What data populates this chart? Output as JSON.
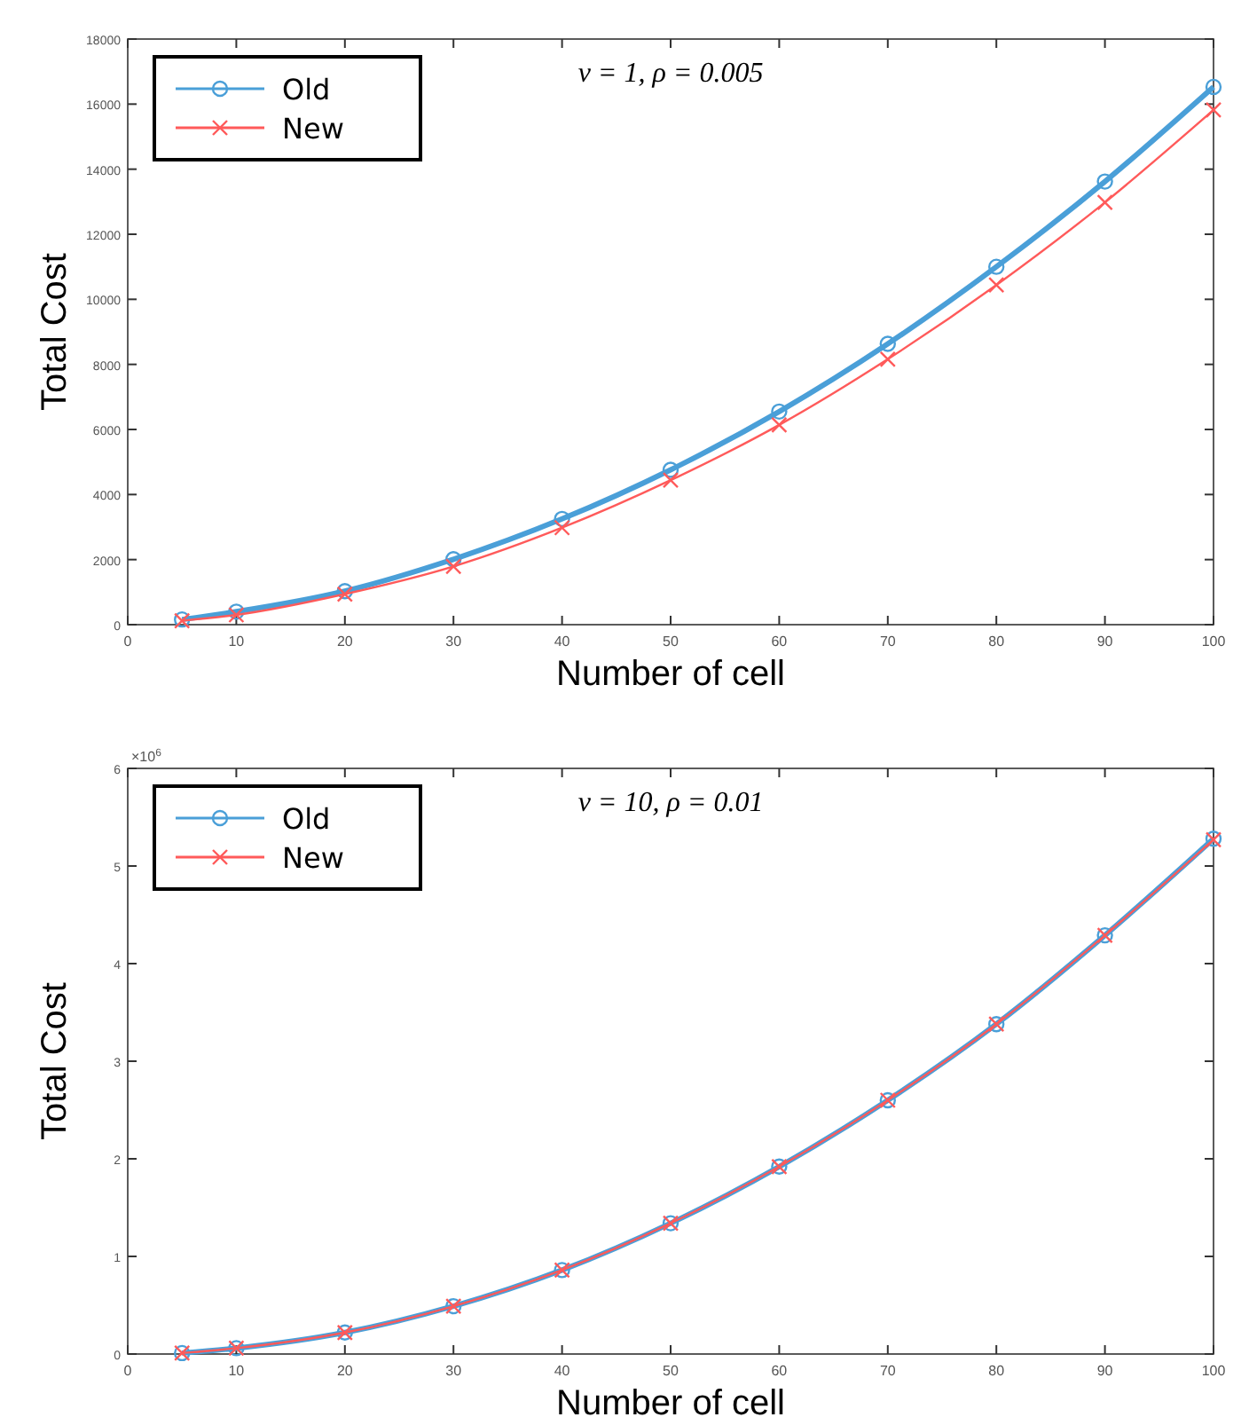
{
  "chart_data": [
    {
      "type": "line",
      "title": "ν = 1, ρ = 0.005",
      "xlabel": "Number of cell",
      "ylabel": "Total Cost",
      "xlim": [
        0,
        100
      ],
      "xticks": [
        0,
        10,
        20,
        30,
        40,
        50,
        60,
        70,
        80,
        90,
        100
      ],
      "ylim": [
        0,
        18000
      ],
      "yticks": [
        0,
        2000,
        4000,
        6000,
        8000,
        10000,
        12000,
        14000,
        16000,
        18000
      ],
      "grid": false,
      "legend": "top left",
      "x": [
        5,
        10,
        20,
        30,
        40,
        50,
        60,
        70,
        80,
        90,
        100
      ],
      "series": [
        {
          "name": "Old",
          "color": "#4a9fd8",
          "marker": "circle",
          "values": [
            160,
            400,
            1030,
            2010,
            3250,
            4760,
            6550,
            8630,
            11000,
            13620,
            16530
          ]
        },
        {
          "name": "New",
          "color": "#ff5a5a",
          "marker": "cross",
          "values": [
            120,
            300,
            940,
            1790,
            2980,
            4440,
            6140,
            8160,
            10440,
            12980,
            15820
          ]
        }
      ]
    },
    {
      "type": "line",
      "title": "ν = 10, ρ = 0.01",
      "xlabel": "Number of cell",
      "ylabel": "Total Cost",
      "annotations": [
        "×10$^{6}$"
      ],
      "xlim": [
        0,
        100
      ],
      "xticks": [
        0,
        10,
        20,
        30,
        40,
        50,
        60,
        70,
        80,
        90,
        100
      ],
      "ylim": [
        0,
        6
      ],
      "yticks": [
        0,
        1,
        2,
        3,
        4,
        5,
        6
      ],
      "grid": false,
      "legend": "top left",
      "x": [
        5,
        10,
        20,
        30,
        40,
        50,
        60,
        70,
        80,
        90,
        100
      ],
      "series": [
        {
          "name": "Old",
          "color": "#4a9fd8",
          "marker": "circle",
          "values": [
            0.01,
            0.06,
            0.22,
            0.49,
            0.86,
            1.34,
            1.92,
            2.6,
            3.38,
            4.29,
            5.28
          ]
        },
        {
          "name": "New",
          "color": "#ff5a5a",
          "marker": "cross",
          "values": [
            0.01,
            0.06,
            0.22,
            0.49,
            0.86,
            1.34,
            1.92,
            2.6,
            3.38,
            4.29,
            5.27
          ]
        }
      ]
    }
  ]
}
